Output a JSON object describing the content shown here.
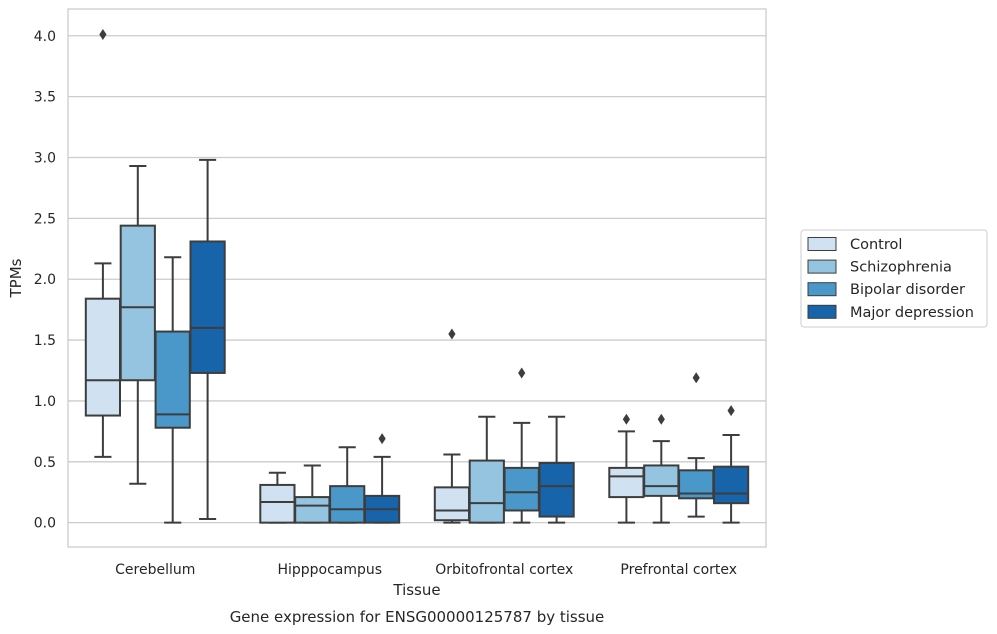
{
  "chart_data": {
    "type": "box",
    "xlabel": "Tissue",
    "ylabel": "TPMs",
    "caption": "Gene expression for ENSG00000125787 by tissue",
    "ylim": [
      -0.2,
      4.22
    ],
    "yticks": [
      "0.0",
      "0.5",
      "1.0",
      "1.5",
      "2.0",
      "2.5",
      "3.0",
      "3.5",
      "4.0"
    ],
    "categories": [
      "Cerebellum",
      "Hipppocampus",
      "Orbitofrontal cortex",
      "Prefrontal cortex"
    ],
    "grid": true,
    "legend_position": "right",
    "series": [
      {
        "name": "Control",
        "color": "#d0e1f2",
        "boxes": [
          {
            "wlo": 0.54,
            "q1": 0.88,
            "med": 1.17,
            "q3": 1.84,
            "whi": 2.13,
            "outliers": [
              4.01
            ]
          },
          {
            "wlo": 0.0,
            "q1": 0.0,
            "med": 0.17,
            "q3": 0.31,
            "whi": 0.41,
            "outliers": []
          },
          {
            "wlo": 0.0,
            "q1": 0.02,
            "med": 0.1,
            "q3": 0.29,
            "whi": 0.56,
            "outliers": [
              1.55
            ]
          },
          {
            "wlo": 0.0,
            "q1": 0.21,
            "med": 0.38,
            "q3": 0.45,
            "whi": 0.75,
            "outliers": [
              0.85
            ]
          }
        ]
      },
      {
        "name": "Schizophrenia",
        "color": "#94c4df",
        "boxes": [
          {
            "wlo": 0.32,
            "q1": 1.17,
            "med": 1.77,
            "q3": 2.44,
            "whi": 2.93,
            "outliers": []
          },
          {
            "wlo": 0.0,
            "q1": 0.0,
            "med": 0.14,
            "q3": 0.21,
            "whi": 0.47,
            "outliers": []
          },
          {
            "wlo": 0.0,
            "q1": 0.0,
            "med": 0.16,
            "q3": 0.51,
            "whi": 0.87,
            "outliers": []
          },
          {
            "wlo": 0.0,
            "q1": 0.22,
            "med": 0.3,
            "q3": 0.47,
            "whi": 0.67,
            "outliers": [
              0.85
            ]
          }
        ]
      },
      {
        "name": "Bipolar disorder",
        "color": "#4a98c9",
        "boxes": [
          {
            "wlo": 0.0,
            "q1": 0.78,
            "med": 0.89,
            "q3": 1.57,
            "whi": 2.18,
            "outliers": []
          },
          {
            "wlo": 0.0,
            "q1": 0.0,
            "med": 0.11,
            "q3": 0.3,
            "whi": 0.62,
            "outliers": []
          },
          {
            "wlo": 0.0,
            "q1": 0.1,
            "med": 0.25,
            "q3": 0.45,
            "whi": 0.82,
            "outliers": [
              1.23
            ]
          },
          {
            "wlo": 0.05,
            "q1": 0.2,
            "med": 0.24,
            "q3": 0.43,
            "whi": 0.53,
            "outliers": [
              1.19
            ]
          }
        ]
      },
      {
        "name": "Major depression",
        "color": "#1764ab",
        "boxes": [
          {
            "wlo": 0.03,
            "q1": 1.23,
            "med": 1.6,
            "q3": 2.31,
            "whi": 2.98,
            "outliers": []
          },
          {
            "wlo": 0.0,
            "q1": 0.0,
            "med": 0.11,
            "q3": 0.22,
            "whi": 0.54,
            "outliers": [
              0.69
            ]
          },
          {
            "wlo": 0.0,
            "q1": 0.05,
            "med": 0.3,
            "q3": 0.49,
            "whi": 0.87,
            "outliers": []
          },
          {
            "wlo": 0.0,
            "q1": 0.16,
            "med": 0.24,
            "q3": 0.46,
            "whi": 0.72,
            "outliers": [
              0.92
            ]
          }
        ]
      }
    ]
  }
}
